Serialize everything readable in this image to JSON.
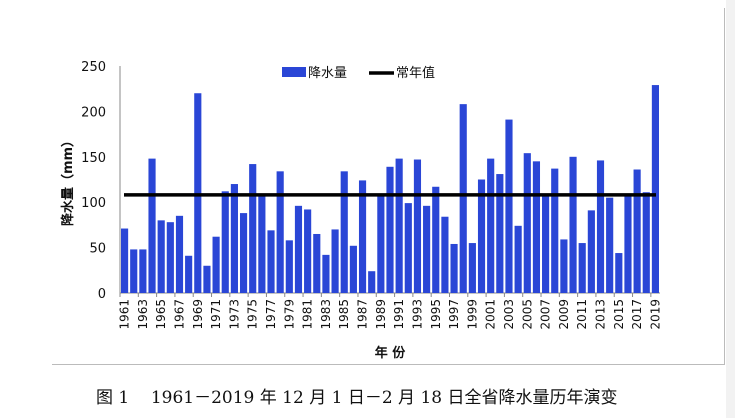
{
  "chart_data": {
    "type": "bar",
    "title": "",
    "xlabel": "年 份",
    "ylabel": "降水量（mm）",
    "ylim": [
      0,
      250
    ],
    "yticks": [
      0,
      50,
      100,
      150,
      200,
      250
    ],
    "grid": false,
    "legend_position": "top-center",
    "categories": [
      "1961",
      "1962",
      "1963",
      "1964",
      "1965",
      "1966",
      "1967",
      "1968",
      "1969",
      "1970",
      "1971",
      "1972",
      "1973",
      "1974",
      "1975",
      "1976",
      "1977",
      "1978",
      "1979",
      "1980",
      "1981",
      "1982",
      "1983",
      "1984",
      "1985",
      "1986",
      "1987",
      "1988",
      "1989",
      "1990",
      "1991",
      "1992",
      "1993",
      "1994",
      "1995",
      "1996",
      "1997",
      "1998",
      "1999",
      "2000",
      "2001",
      "2002",
      "2003",
      "2004",
      "2005",
      "2006",
      "2007",
      "2008",
      "2009",
      "2010",
      "2011",
      "2012",
      "2013",
      "2014",
      "2015",
      "2016",
      "2017",
      "2018",
      "2019"
    ],
    "series": [
      {
        "name": "降水量",
        "kind": "bar",
        "color": "#2a46d6",
        "values": [
          71,
          48,
          48,
          148,
          80,
          78,
          85,
          41,
          220,
          30,
          62,
          112,
          120,
          88,
          142,
          108,
          69,
          134,
          58,
          96,
          92,
          65,
          42,
          70,
          134,
          52,
          124,
          24,
          108,
          139,
          148,
          99,
          147,
          96,
          117,
          84,
          54,
          208,
          55,
          125,
          148,
          131,
          191,
          74,
          154,
          145,
          108,
          137,
          59,
          150,
          55,
          91,
          146,
          105,
          44,
          107,
          136,
          111,
          229
        ]
      },
      {
        "name": "常年值",
        "kind": "line",
        "color": "#000000",
        "value": 108
      }
    ]
  },
  "caption": "图 1    1961－2019 年 12 月 1 日－2 月 18 日全省降水量历年演变"
}
